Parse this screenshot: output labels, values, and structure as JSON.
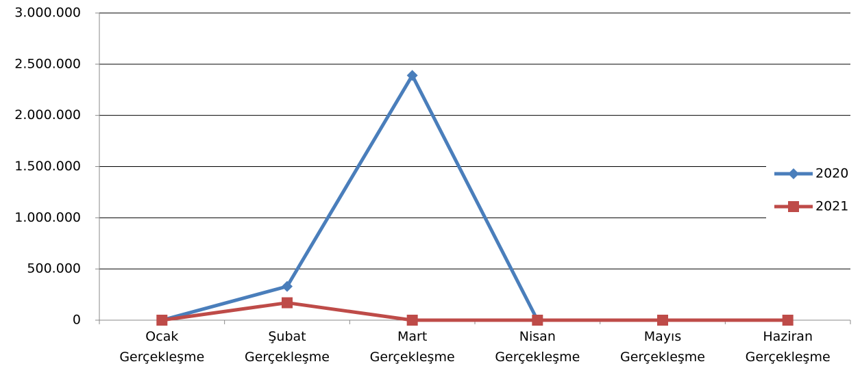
{
  "chart_data": {
    "type": "line",
    "categories": [
      "Ocak Gerçekleşme",
      "Şubat Gerçekleşme",
      "Mart Gerçekleşme",
      "Nisan Gerçekleşme",
      "Mayıs Gerçekleşme",
      "Haziran Gerçekleşme"
    ],
    "series": [
      {
        "name": "2020",
        "color": "#4a7ebb",
        "marker": "diamond",
        "values": [
          0,
          330000,
          2390000,
          0,
          null,
          null
        ]
      },
      {
        "name": "2021",
        "color": "#be4b48",
        "marker": "square",
        "values": [
          0,
          170000,
          0,
          0,
          0,
          0
        ]
      }
    ],
    "ylim": [
      0,
      3000000
    ],
    "yticks": [
      0,
      {
        "value": 500000,
        "label": "500.000"
      },
      {
        "value": 1000000,
        "label": "1.000.000"
      },
      {
        "value": 1500000,
        "label": "1.500.000"
      },
      {
        "value": 2000000,
        "label": "2.000.000"
      },
      {
        "value": 2500000,
        "label": "2.500.000"
      },
      {
        "value": 3000000,
        "label": "3.000.000"
      }
    ],
    "grid": true,
    "legend": "right"
  }
}
